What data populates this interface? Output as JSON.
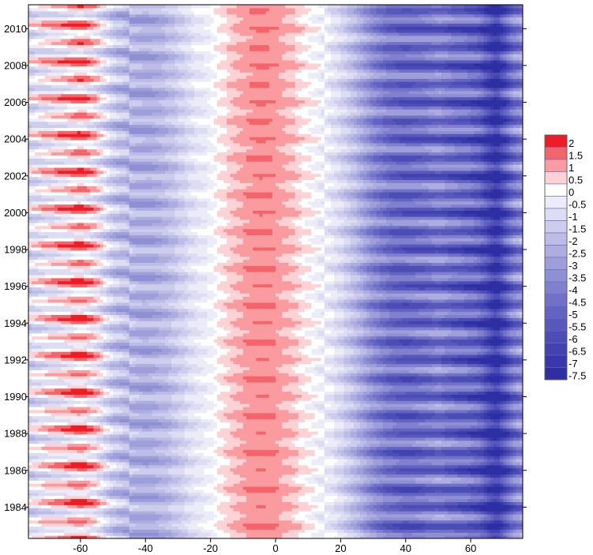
{
  "chart_data": {
    "type": "heatmap",
    "title": "",
    "xlabel": "",
    "ylabel": "",
    "xlim": [
      -76,
      76
    ],
    "ylim": [
      1982.3,
      2011.3
    ],
    "x_ticks": [
      -60,
      -40,
      -20,
      0,
      20,
      40,
      60
    ],
    "y_ticks": [
      1984,
      1986,
      1988,
      1990,
      1992,
      1994,
      1996,
      1998,
      2000,
      2002,
      2004,
      2006,
      2008,
      2010
    ],
    "x_tick_labels": [
      "-60",
      "-40",
      "-20",
      "0",
      "20",
      "40",
      "60"
    ],
    "y_tick_labels": [
      "1984",
      "1986",
      "1988",
      "1990",
      "1992",
      "1994",
      "1996",
      "1998",
      "2000",
      "2002",
      "2004",
      "2006",
      "2008",
      "2010"
    ],
    "right_axis_ticks": [
      1984,
      1986,
      1988,
      1990,
      1992,
      1994,
      1996,
      1998,
      2000,
      2002,
      2004,
      2006,
      2008,
      2010
    ],
    "legend": {
      "placement": "right",
      "levels": [
        "2",
        "1.5",
        "1",
        "0.5",
        "0",
        "-0.5",
        "-1",
        "-1.5",
        "-2",
        "-2.5",
        "-3",
        "-3.5",
        "-4",
        "-4.5",
        "-5",
        "-5.5",
        "-6",
        "-6.5",
        "-7",
        "-7.5"
      ],
      "colors": [
        "#ee1c24",
        "#f5646a",
        "#f99b9f",
        "#fdd2d4",
        "#ffffff",
        "#ececf8",
        "#dcdcf2",
        "#ccccec",
        "#bcbce6",
        "#adade0",
        "#9e9eda",
        "#8f8fd4",
        "#8080ce",
        "#7171c8",
        "#6363c2",
        "#5858bc",
        "#4d4db6",
        "#4242b0",
        "#3838aa",
        "#2f2fa4"
      ]
    },
    "latitude_profile": {
      "x": [
        -76,
        -70,
        -65,
        -60,
        -55,
        -50,
        -45,
        -40,
        -35,
        -30,
        -25,
        -20,
        -17,
        -14,
        -10,
        -5,
        0,
        5,
        8,
        12,
        16,
        20,
        25,
        30,
        35,
        40,
        45,
        50,
        55,
        60,
        63,
        66,
        68,
        70,
        73,
        76
      ],
      "values": [
        -0.6,
        0.1,
        0.4,
        1.0,
        0.2,
        -1.4,
        -2.0,
        -2.3,
        -2.0,
        -1.3,
        -0.5,
        -0.1,
        0.5,
        0.8,
        1.2,
        1.4,
        1.3,
        0.9,
        0.6,
        0.1,
        -0.3,
        -0.9,
        -2.0,
        -3.4,
        -4.3,
        -4.6,
        -4.4,
        -4.0,
        -4.5,
        -4.8,
        -5.2,
        -6.4,
        -7.2,
        -5.8,
        -4.2,
        -3.4
      ]
    },
    "seasonal_amplitude": {
      "x": [
        -76,
        -60,
        -40,
        -20,
        0,
        20,
        40,
        60,
        76
      ],
      "values": [
        1.2,
        1.4,
        0.9,
        0.3,
        0.2,
        0.6,
        1.5,
        1.8,
        1.6
      ]
    }
  }
}
